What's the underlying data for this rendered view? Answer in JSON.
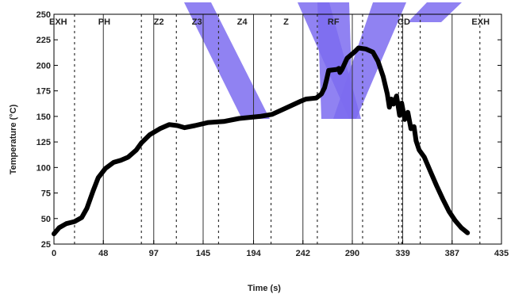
{
  "chart_data": {
    "type": "line",
    "xlabel": "Time (s)",
    "ylabel": "Temperature (°C)",
    "xlim": [
      0,
      435
    ],
    "ylim": [
      25,
      250
    ],
    "x_ticks": [
      0,
      48,
      97,
      145,
      194,
      242,
      290,
      339,
      387,
      435
    ],
    "y_ticks": [
      25,
      50,
      75,
      100,
      125,
      150,
      175,
      200,
      225,
      250
    ],
    "grid": "vertical solid at x ticks; zone boundaries dashed",
    "zones": [
      {
        "label": "EXH",
        "x": 0
      },
      {
        "label": "PH",
        "x": 43
      },
      {
        "label": "Z2",
        "x": 97
      },
      {
        "label": "Z3",
        "x": 134
      },
      {
        "label": "Z4",
        "x": 178
      },
      {
        "label": "Z",
        "x": 223
      },
      {
        "label": "RF",
        "x": 266
      },
      {
        "label": "CD",
        "x": 334
      },
      {
        "label": "EXH",
        "x": 406
      }
    ],
    "zone_boundaries": [
      20,
      85,
      119,
      160,
      211,
      256,
      300,
      335,
      338,
      356,
      414
    ],
    "series": [
      {
        "values": [
          [
            0,
            35
          ],
          [
            5,
            41
          ],
          [
            12,
            45
          ],
          [
            20,
            47
          ],
          [
            27,
            51
          ],
          [
            32,
            60
          ],
          [
            38,
            77
          ],
          [
            43,
            90
          ],
          [
            50,
            99
          ],
          [
            58,
            105
          ],
          [
            65,
            107
          ],
          [
            72,
            110
          ],
          [
            80,
            117
          ],
          [
            85,
            124
          ],
          [
            93,
            132
          ],
          [
            103,
            138
          ],
          [
            112,
            142
          ],
          [
            120,
            141
          ],
          [
            127,
            139
          ],
          [
            137,
            141
          ],
          [
            150,
            144
          ],
          [
            165,
            145
          ],
          [
            180,
            148
          ],
          [
            200,
            150
          ],
          [
            212,
            152
          ],
          [
            225,
            158
          ],
          [
            240,
            165
          ],
          [
            245,
            167
          ],
          [
            255,
            168
          ],
          [
            260,
            172
          ],
          [
            263,
            178
          ],
          [
            265,
            186
          ],
          [
            267,
            195
          ],
          [
            275,
            196
          ],
          [
            277,
            197
          ],
          [
            278,
            193
          ],
          [
            280,
            196
          ],
          [
            285,
            207
          ],
          [
            292,
            213
          ],
          [
            296,
            217
          ],
          [
            303,
            216
          ],
          [
            310,
            213
          ],
          [
            315,
            204
          ],
          [
            320,
            189
          ],
          [
            324,
            172
          ],
          [
            326,
            159
          ],
          [
            328,
            167
          ],
          [
            330,
            162
          ],
          [
            333,
            170
          ],
          [
            336,
            151
          ],
          [
            338,
            163
          ],
          [
            341,
            147
          ],
          [
            344,
            154
          ],
          [
            347,
            138
          ],
          [
            350,
            140
          ],
          [
            352,
            126
          ],
          [
            355,
            117
          ],
          [
            360,
            110
          ],
          [
            366,
            96
          ],
          [
            372,
            82
          ],
          [
            378,
            69
          ],
          [
            384,
            57
          ],
          [
            390,
            48
          ],
          [
            396,
            41
          ],
          [
            402,
            36
          ]
        ]
      }
    ]
  }
}
